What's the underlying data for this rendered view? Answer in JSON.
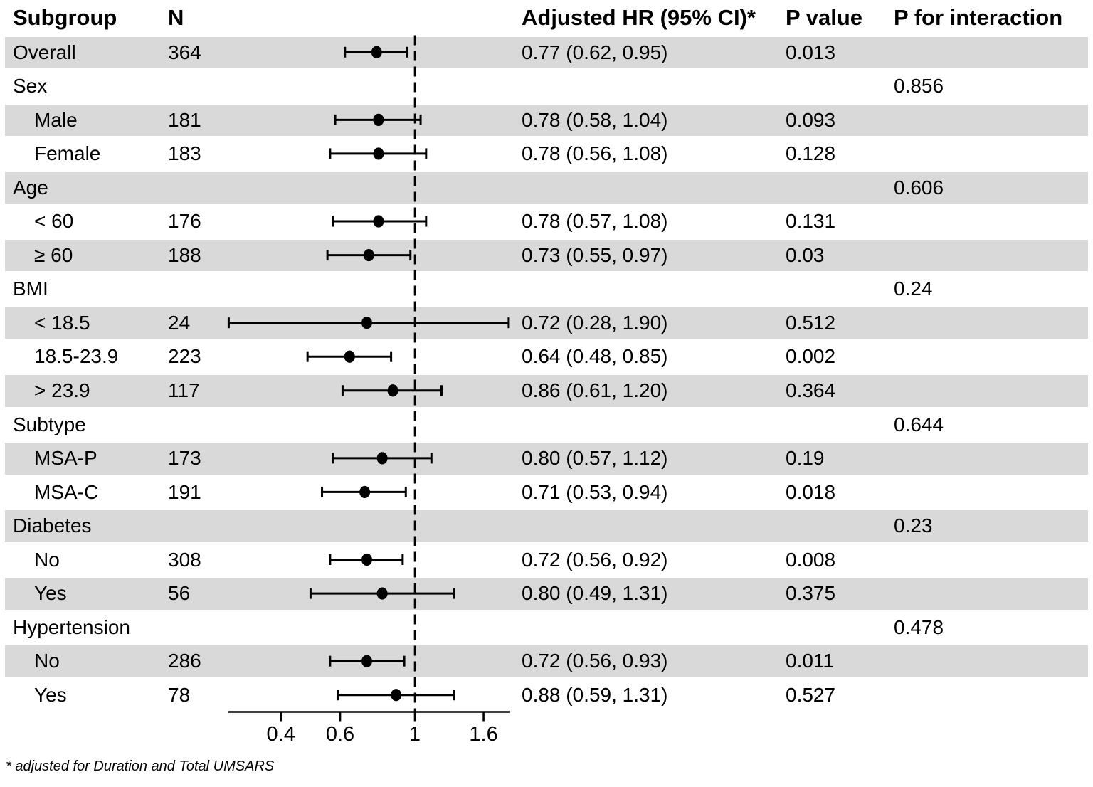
{
  "header": {
    "subgroup": "Subgroup",
    "n": "N",
    "hr": "Adjusted HR (95% CI)*",
    "p": "P value",
    "p_interaction": "P for interaction"
  },
  "footnote": "* adjusted for Duration and Total UMSARS",
  "colors": {
    "row_shade": "#d9d9d9",
    "marker": "#000000",
    "ref_line": "#000000",
    "text": "#000000"
  },
  "chart_data": {
    "type": "forest",
    "scale": "log",
    "ref_line": 1,
    "x_ticks": [
      "0.4",
      "0.6",
      "1",
      "1.6"
    ],
    "x_tick_values": [
      0.4,
      0.6,
      1,
      1.6
    ],
    "x_range": [
      0.28,
      1.91
    ],
    "rows": [
      {
        "label": "Overall",
        "indent": false,
        "n": "364",
        "hr_text": "0.77 (0.62, 0.95)",
        "p": "0.013",
        "p_interaction": "",
        "est": 0.77,
        "lo": 0.62,
        "hi": 0.95,
        "shaded": true
      },
      {
        "label": "Sex",
        "indent": false,
        "n": "",
        "hr_text": "",
        "p": "",
        "p_interaction": "0.856",
        "est": null,
        "lo": null,
        "hi": null,
        "shaded": false
      },
      {
        "label": "Male",
        "indent": true,
        "n": "181",
        "hr_text": "0.78 (0.58, 1.04)",
        "p": "0.093",
        "p_interaction": "",
        "est": 0.78,
        "lo": 0.58,
        "hi": 1.04,
        "shaded": true
      },
      {
        "label": "Female",
        "indent": true,
        "n": "183",
        "hr_text": "0.78 (0.56, 1.08)",
        "p": "0.128",
        "p_interaction": "",
        "est": 0.78,
        "lo": 0.56,
        "hi": 1.08,
        "shaded": false
      },
      {
        "label": "Age",
        "indent": false,
        "n": "",
        "hr_text": "",
        "p": "",
        "p_interaction": "0.606",
        "est": null,
        "lo": null,
        "hi": null,
        "shaded": true
      },
      {
        "label": "< 60",
        "indent": true,
        "n": "176",
        "hr_text": "0.78 (0.57, 1.08)",
        "p": "0.131",
        "p_interaction": "",
        "est": 0.78,
        "lo": 0.57,
        "hi": 1.08,
        "shaded": false
      },
      {
        "label": "≥ 60",
        "indent": true,
        "n": "188",
        "hr_text": "0.73 (0.55, 0.97)",
        "p": "0.03",
        "p_interaction": "",
        "est": 0.73,
        "lo": 0.55,
        "hi": 0.97,
        "shaded": true
      },
      {
        "label": "BMI",
        "indent": false,
        "n": "",
        "hr_text": "",
        "p": "",
        "p_interaction": "0.24",
        "est": null,
        "lo": null,
        "hi": null,
        "shaded": false
      },
      {
        "label": "< 18.5",
        "indent": true,
        "n": "24",
        "hr_text": "0.72 (0.28, 1.90)",
        "p": "0.512",
        "p_interaction": "",
        "est": 0.72,
        "lo": 0.28,
        "hi": 1.9,
        "shaded": true
      },
      {
        "label": "18.5-23.9",
        "indent": true,
        "n": "223",
        "hr_text": "0.64 (0.48, 0.85)",
        "p": "0.002",
        "p_interaction": "",
        "est": 0.64,
        "lo": 0.48,
        "hi": 0.85,
        "shaded": false
      },
      {
        "label": "> 23.9",
        "indent": true,
        "n": "117",
        "hr_text": "0.86 (0.61, 1.20)",
        "p": "0.364",
        "p_interaction": "",
        "est": 0.86,
        "lo": 0.61,
        "hi": 1.2,
        "shaded": true
      },
      {
        "label": "Subtype",
        "indent": false,
        "n": "",
        "hr_text": "",
        "p": "",
        "p_interaction": "0.644",
        "est": null,
        "lo": null,
        "hi": null,
        "shaded": false
      },
      {
        "label": "MSA-P",
        "indent": true,
        "n": "173",
        "hr_text": "0.80 (0.57, 1.12)",
        "p": "0.19",
        "p_interaction": "",
        "est": 0.8,
        "lo": 0.57,
        "hi": 1.12,
        "shaded": true
      },
      {
        "label": "MSA-C",
        "indent": true,
        "n": "191",
        "hr_text": "0.71 (0.53, 0.94)",
        "p": "0.018",
        "p_interaction": "",
        "est": 0.71,
        "lo": 0.53,
        "hi": 0.94,
        "shaded": false
      },
      {
        "label": "Diabetes",
        "indent": false,
        "n": "",
        "hr_text": "",
        "p": "",
        "p_interaction": "0.23",
        "est": null,
        "lo": null,
        "hi": null,
        "shaded": true
      },
      {
        "label": "No",
        "indent": true,
        "n": "308",
        "hr_text": "0.72 (0.56, 0.92)",
        "p": "0.008",
        "p_interaction": "",
        "est": 0.72,
        "lo": 0.56,
        "hi": 0.92,
        "shaded": false
      },
      {
        "label": "Yes",
        "indent": true,
        "n": "56",
        "hr_text": "0.80 (0.49, 1.31)",
        "p": "0.375",
        "p_interaction": "",
        "est": 0.8,
        "lo": 0.49,
        "hi": 1.31,
        "shaded": true
      },
      {
        "label": "Hypertension",
        "indent": false,
        "n": "",
        "hr_text": "",
        "p": "",
        "p_interaction": "0.478",
        "est": null,
        "lo": null,
        "hi": null,
        "shaded": false
      },
      {
        "label": "No",
        "indent": true,
        "n": "286",
        "hr_text": "0.72 (0.56, 0.93)",
        "p": "0.011",
        "p_interaction": "",
        "est": 0.72,
        "lo": 0.56,
        "hi": 0.93,
        "shaded": true
      },
      {
        "label": "Yes",
        "indent": true,
        "n": "78",
        "hr_text": "0.88 (0.59, 1.31)",
        "p": "0.527",
        "p_interaction": "",
        "est": 0.88,
        "lo": 0.59,
        "hi": 1.31,
        "shaded": false
      }
    ]
  }
}
